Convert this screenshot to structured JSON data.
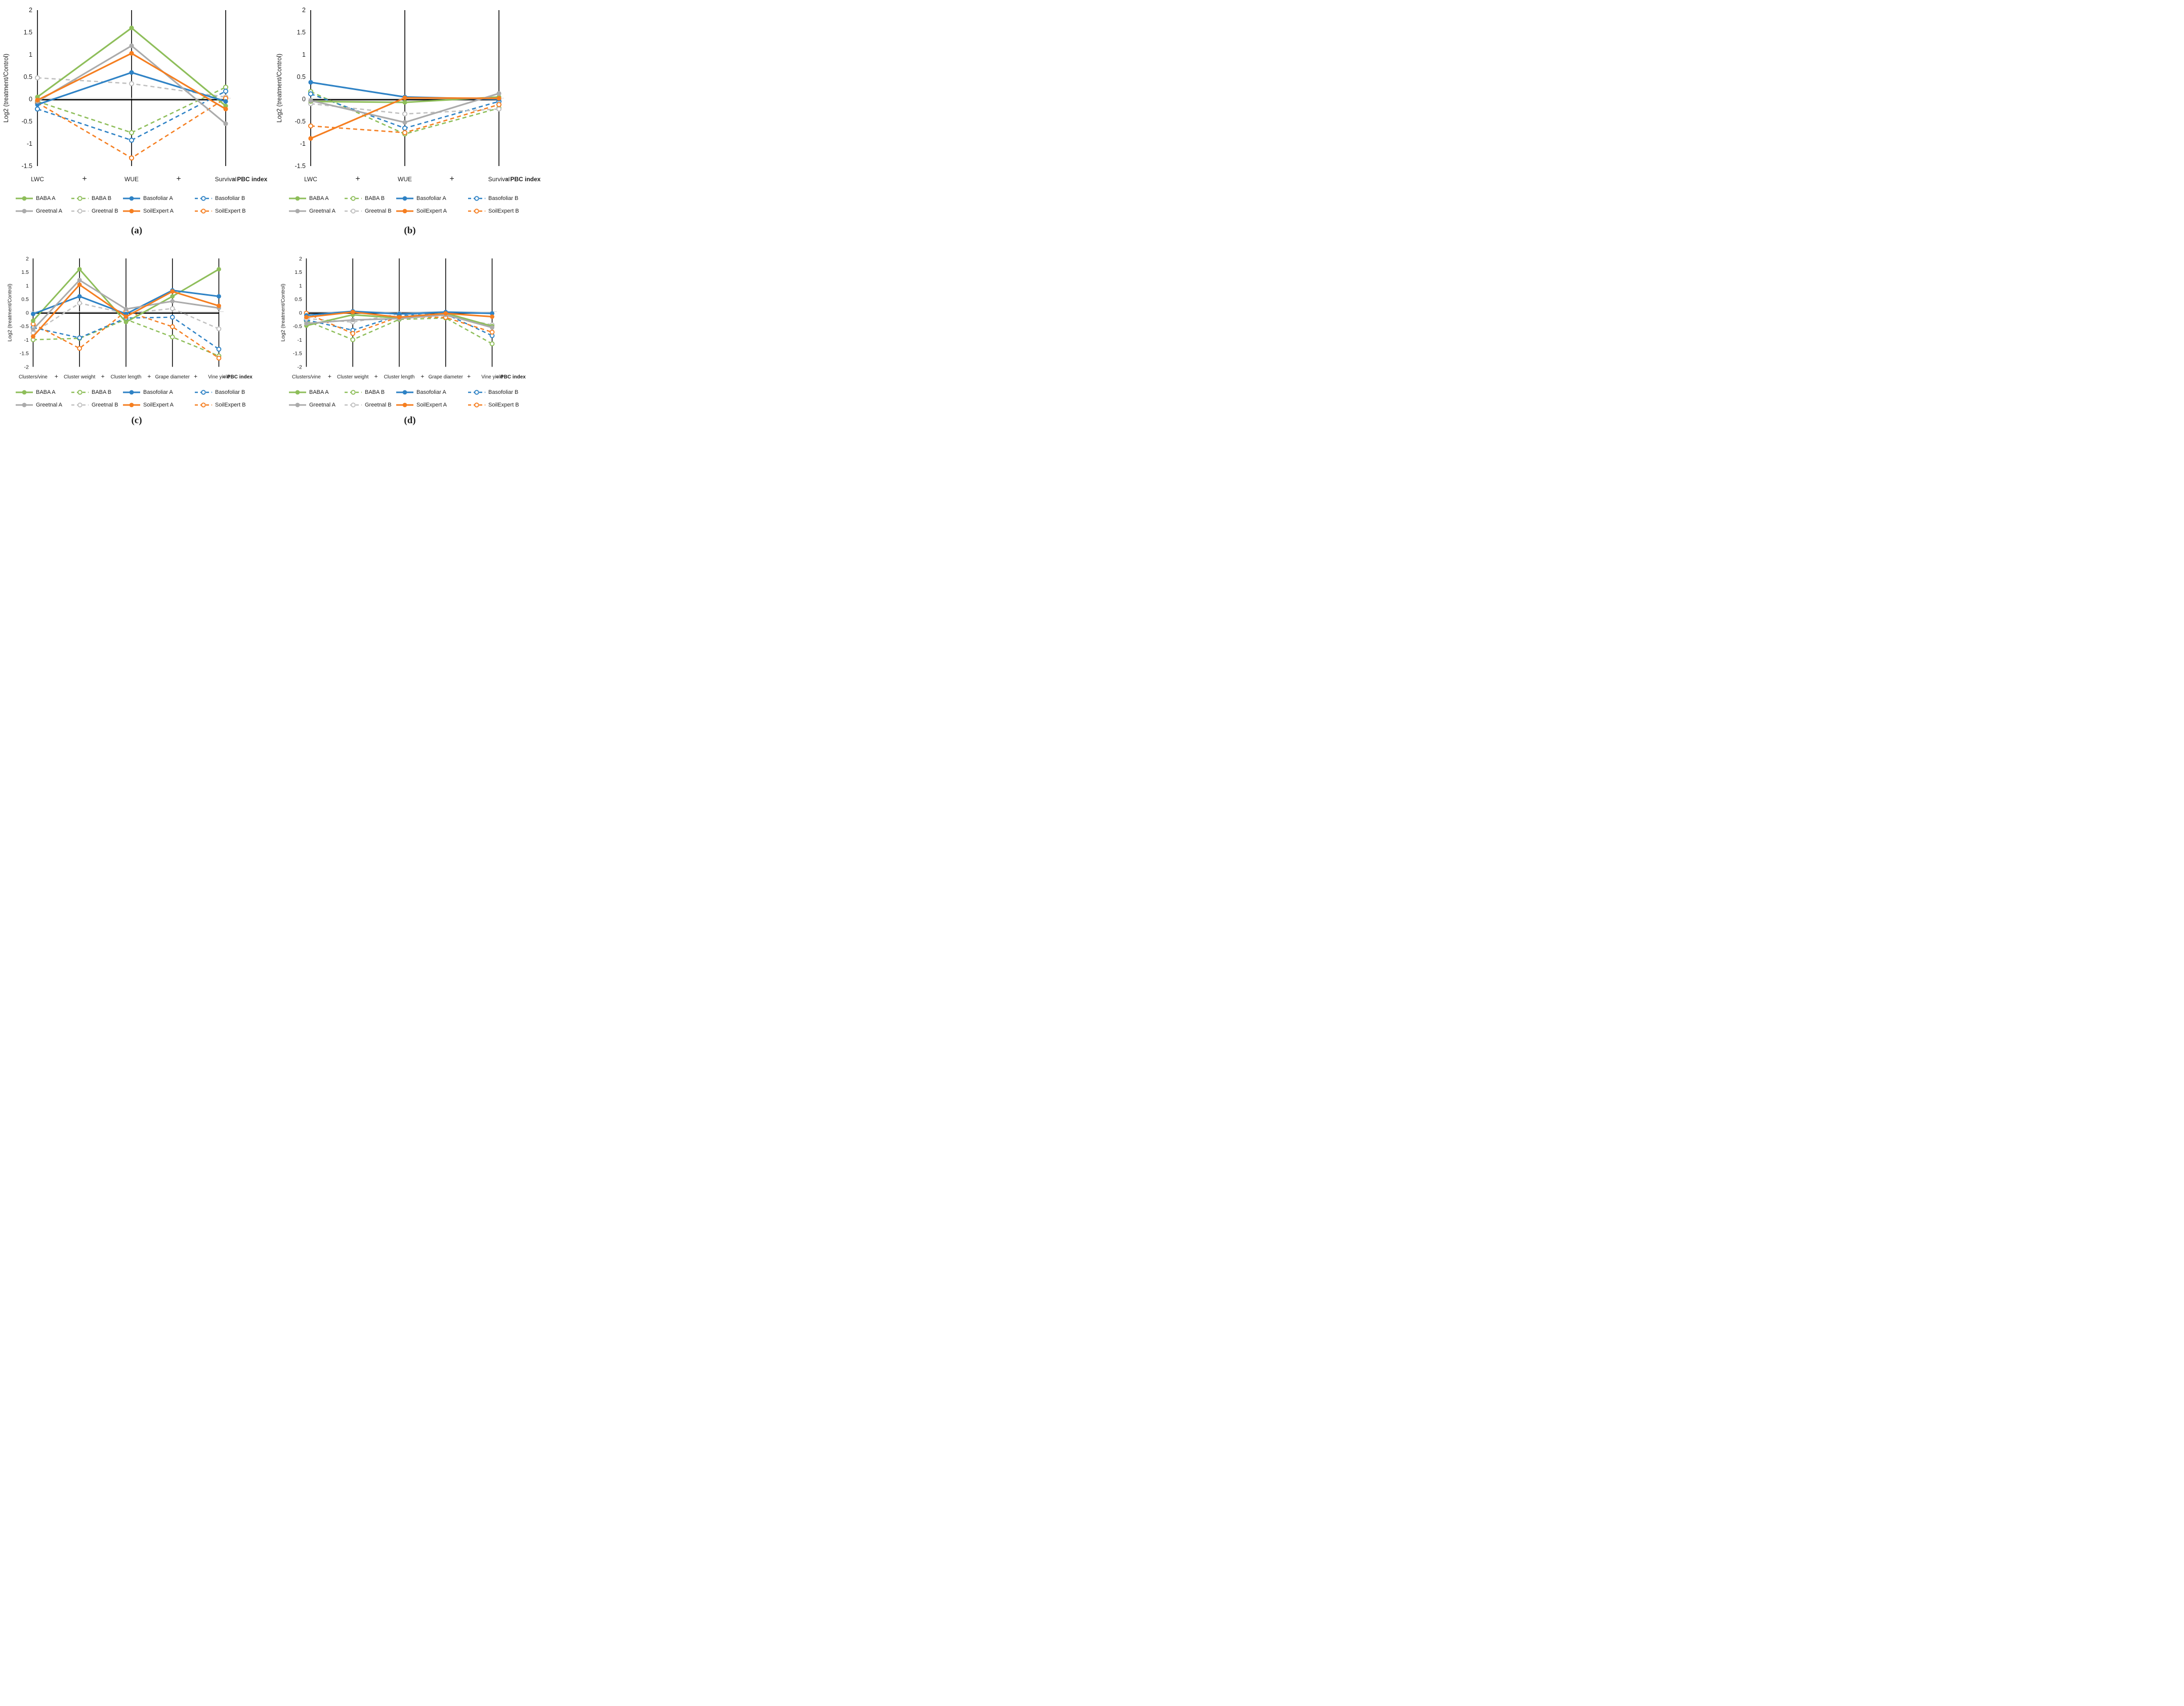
{
  "figure": {
    "ylabel": "Log2 (treatment/Control)",
    "plus_sign": "+",
    "equals_sign": "=",
    "pbc_label": "PBC index",
    "background": "#ffffff",
    "axis_color": "#000000",
    "zero_gridline_color": "#d9d9d9"
  },
  "legend": {
    "position": "bottom",
    "entries": [
      {
        "name": "BABA A",
        "color": "#8EBE5A",
        "dashed": false,
        "marker": "filled"
      },
      {
        "name": "BABA B",
        "color": "#8EBE5A",
        "dashed": true,
        "marker": "open"
      },
      {
        "name": "Basofoliar A",
        "color": "#2E82C5",
        "dashed": false,
        "marker": "filled"
      },
      {
        "name": "Basofoliar B",
        "color": "#2E82C5",
        "dashed": true,
        "marker": "open"
      },
      {
        "name": "Greetnal A",
        "color": "#ABABAB",
        "dashed": false,
        "marker": "filled"
      },
      {
        "name": "Greetnal B",
        "color": "#C0C0C0",
        "dashed": true,
        "marker": "open"
      },
      {
        "name": "SoilExpert A",
        "color": "#F57E20",
        "dashed": false,
        "marker": "filled"
      },
      {
        "name": "SoilExpert B",
        "color": "#F57E20",
        "dashed": true,
        "marker": "open"
      }
    ]
  },
  "chart_data": [
    {
      "id": "a",
      "type": "line",
      "caption": "(a)",
      "ylabel": "Log2 (treatment/Control)",
      "categories": [
        "LWC",
        "WUE",
        "Survival"
      ],
      "x_suffix": "= PBC index",
      "ylim": [
        -1.5,
        2
      ],
      "ytick_step": 0.5,
      "grid": "category-verticals",
      "series": [
        {
          "name": "BABA A",
          "values": [
            0.05,
            1.6,
            -0.15
          ]
        },
        {
          "name": "BABA B",
          "values": [
            -0.05,
            -0.75,
            0.27
          ]
        },
        {
          "name": "Basofoliar A",
          "values": [
            -0.12,
            0.6,
            -0.05
          ]
        },
        {
          "name": "Basofoliar B",
          "values": [
            -0.22,
            -0.92,
            0.18
          ]
        },
        {
          "name": "Greetnal A",
          "values": [
            -0.05,
            1.2,
            -0.55
          ]
        },
        {
          "name": "Greetnal B",
          "values": [
            0.48,
            0.35,
            0.05
          ]
        },
        {
          "name": "SoilExpert A",
          "values": [
            -0.02,
            1.03,
            -0.22
          ]
        },
        {
          "name": "SoilExpert B",
          "values": [
            -0.08,
            -1.32,
            0.02
          ]
        }
      ]
    },
    {
      "id": "b",
      "type": "line",
      "caption": "(b)",
      "ylabel": "Log2 (treatment/Control)",
      "categories": [
        "LWC",
        "WUE",
        "Survival"
      ],
      "x_suffix": "= PBC index",
      "ylim": [
        -1.5,
        2
      ],
      "ytick_step": 0.5,
      "grid": "category-verticals",
      "series": [
        {
          "name": "BABA A",
          "values": [
            -0.05,
            -0.07,
            0.05
          ]
        },
        {
          "name": "BABA B",
          "values": [
            0.17,
            -0.78,
            -0.2
          ]
        },
        {
          "name": "Basofoliar A",
          "values": [
            0.38,
            0.05,
            0
          ]
        },
        {
          "name": "Basofoliar B",
          "values": [
            0.12,
            -0.65,
            -0.05
          ]
        },
        {
          "name": "Greetnal A",
          "values": [
            -0.03,
            -0.52,
            0.13
          ]
        },
        {
          "name": "Greetnal B",
          "values": [
            -0.1,
            -0.33,
            -0.22
          ]
        },
        {
          "name": "SoilExpert A",
          "values": [
            -0.88,
            0.03,
            0.02
          ]
        },
        {
          "name": "SoilExpert B",
          "values": [
            -0.6,
            -0.75,
            -0.12
          ]
        }
      ]
    },
    {
      "id": "c",
      "type": "line",
      "caption": "(c)",
      "ylabel": "Log2 (treatment/Control)",
      "categories": [
        "Clusters/vine",
        "Cluster weight",
        "Cluster length",
        "Grape diameter",
        "Vine yield"
      ],
      "x_suffix": "= PBC index",
      "ylim": [
        -2,
        2
      ],
      "ytick_step": 0.5,
      "grid": "category-verticals",
      "series": [
        {
          "name": "BABA A",
          "values": [
            -0.3,
            1.6,
            -0.35,
            0.6,
            1.6
          ]
        },
        {
          "name": "BABA B",
          "values": [
            -1.0,
            -0.95,
            -0.25,
            -0.9,
            -1.6
          ]
        },
        {
          "name": "Basofoliar A",
          "values": [
            -0.05,
            0.6,
            -0.05,
            0.82,
            0.6
          ]
        },
        {
          "name": "Basofoliar B",
          "values": [
            -0.55,
            -0.93,
            -0.2,
            -0.17,
            -1.35
          ]
        },
        {
          "name": "Greetnal A",
          "values": [
            -0.62,
            1.2,
            0.13,
            0.42,
            0.17
          ]
        },
        {
          "name": "Greetnal B",
          "values": [
            -0.75,
            0.35,
            -0.03,
            0.15,
            -0.6
          ]
        },
        {
          "name": "SoilExpert A",
          "values": [
            -0.88,
            1.03,
            -0.15,
            0.78,
            0.25
          ]
        },
        {
          "name": "SoilExpert B",
          "values": [
            -0.42,
            -1.32,
            0.05,
            -0.52,
            -1.68
          ]
        }
      ]
    },
    {
      "id": "d",
      "type": "line",
      "caption": "(d)",
      "ylabel": "Log2 (treatment/Control)",
      "categories": [
        "Clusters/vine",
        "Cluster weight",
        "Cluster length",
        "Grape diameter",
        "Vine yield"
      ],
      "x_suffix": "= PBC index",
      "ylim": [
        -2,
        2
      ],
      "ytick_step": 0.5,
      "grid": "category-verticals",
      "series": [
        {
          "name": "BABA A",
          "values": [
            -0.48,
            -0.08,
            -0.2,
            -0.02,
            -0.5
          ]
        },
        {
          "name": "BABA B",
          "values": [
            -0.3,
            -1.0,
            -0.25,
            -0.2,
            -1.15
          ]
        },
        {
          "name": "Basofoliar A",
          "values": [
            -0.1,
            0.05,
            -0.05,
            0.02,
            -0.03
          ]
        },
        {
          "name": "Basofoliar B",
          "values": [
            -0.27,
            -0.65,
            -0.1,
            -0.05,
            -0.85
          ]
        },
        {
          "name": "Greetnal A",
          "values": [
            -0.4,
            -0.27,
            -0.22,
            -0.08,
            -0.55
          ]
        },
        {
          "name": "Greetnal B",
          "values": [
            -0.22,
            -0.35,
            -0.05,
            -0.12,
            -0.45
          ]
        },
        {
          "name": "SoilExpert A",
          "values": [
            -0.17,
            0.02,
            -0.17,
            -0.03,
            -0.15
          ]
        },
        {
          "name": "SoilExpert B",
          "values": [
            -0.02,
            -0.77,
            -0.15,
            -0.18,
            -0.72
          ]
        }
      ]
    }
  ]
}
